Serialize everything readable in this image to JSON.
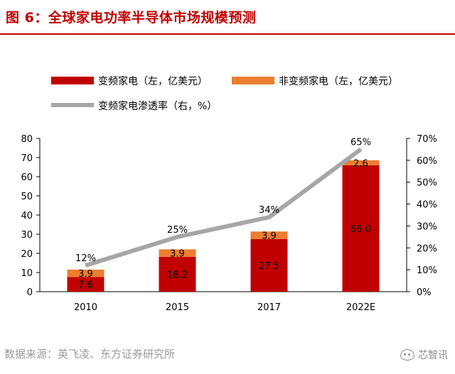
{
  "figure": {
    "title": "图 6：全球家电功率半导体市场规模预测",
    "source": "数据来源：英飞凌、东方证券研究所",
    "watermark": "芯智讯"
  },
  "colors": {
    "title": "#c00000",
    "inverter_bar": "#c00000",
    "non_inverter_bar": "#ed7d31",
    "penetration_line": "#a6a6a6",
    "axis": "#000000"
  },
  "chart_data": {
    "type": "bar",
    "stacked": true,
    "categories": [
      "2010",
      "2015",
      "2017",
      "2022E"
    ],
    "series": [
      {
        "name": "变频家电（左，亿美元）",
        "values": [
          7.6,
          18.2,
          27.5,
          66.0
        ],
        "labels": [
          "7.6",
          "18.2",
          "27.5",
          "66.0"
        ],
        "axis": "left"
      },
      {
        "name": "非变频家电（左，亿美元）",
        "values": [
          3.9,
          3.9,
          3.9,
          2.6
        ],
        "labels": [
          "3.9",
          "3.9",
          "3.9",
          "2.6"
        ],
        "axis": "left"
      }
    ],
    "line_series": {
      "name": "变频家电渗透率（右，%）",
      "values": [
        12,
        25,
        34,
        65
      ],
      "labels": [
        "12%",
        "25%",
        "34%",
        "65%"
      ],
      "axis": "right"
    },
    "ylim_left": [
      0,
      80
    ],
    "yticks_left": [
      "0",
      "10",
      "20",
      "30",
      "40",
      "50",
      "60",
      "70",
      "80"
    ],
    "ylim_right": [
      0,
      70
    ],
    "yticks_right": [
      "0%",
      "10%",
      "20%",
      "30%",
      "40%",
      "50%",
      "60%",
      "70%"
    ],
    "grid": false,
    "legend_position": "top"
  }
}
